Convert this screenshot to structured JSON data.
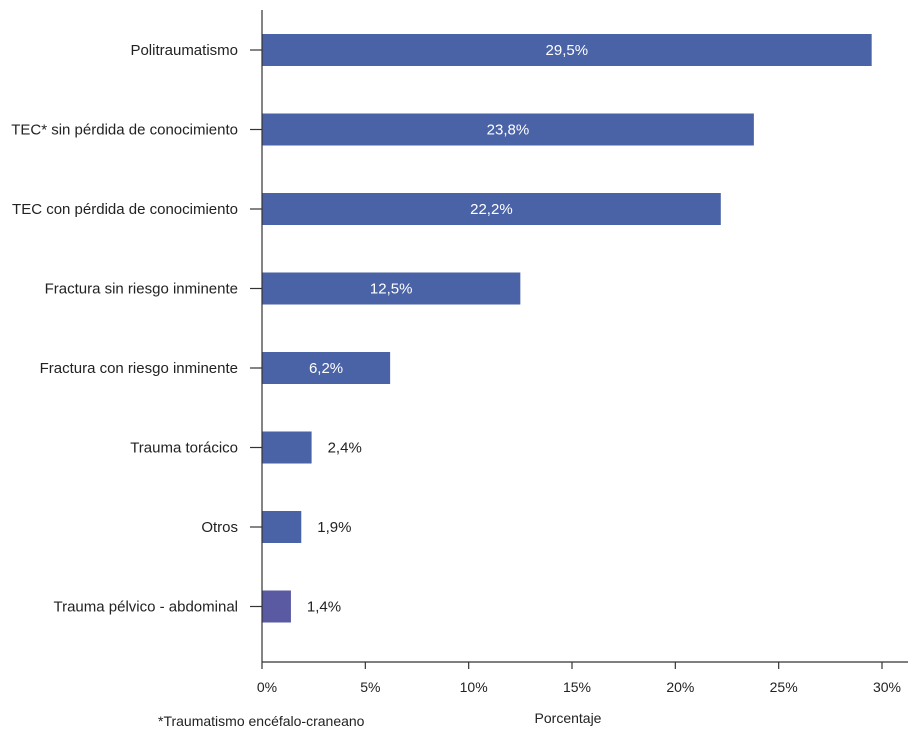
{
  "colors": {
    "bar": "#4a62a6",
    "bar_last": "#5a5aa3",
    "axis": "#333333"
  },
  "footnote": "*Traumatismo encéfalo-craneano",
  "chart_data": {
    "type": "bar",
    "orientation": "horizontal",
    "categories": [
      "Politraumatismo",
      "TEC* sin pérdida de conocimiento",
      "TEC con pérdida de conocimiento",
      "Fractura sin riesgo inminente",
      "Fractura con riesgo inminente",
      "Trauma torácico",
      "Otros",
      "Trauma pélvico - abdominal"
    ],
    "values": [
      29.5,
      23.8,
      22.2,
      12.5,
      6.2,
      2.4,
      1.9,
      1.4
    ],
    "value_labels": [
      "29,5%",
      "23,8%",
      "22,2%",
      "12,5%",
      "6,2%",
      "2,4%",
      "1,9%",
      "1,4%"
    ],
    "xlabel": "Porcentaje",
    "ylabel": "",
    "xlim": [
      0,
      30
    ],
    "xticks": [
      0,
      5,
      10,
      15,
      20,
      25,
      30
    ],
    "xtick_labels": [
      "0%",
      "5%",
      "10%",
      "15%",
      "20%",
      "25%",
      "30%"
    ],
    "grid": false,
    "legend": "none"
  }
}
